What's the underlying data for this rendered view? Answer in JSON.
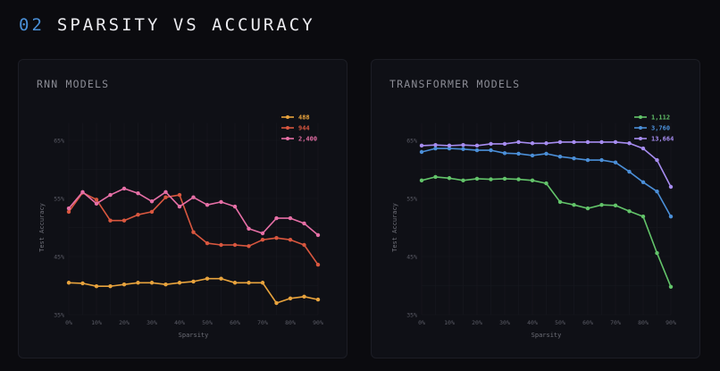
{
  "header": {
    "number": "02",
    "title": "SPARSITY VS ACCURACY"
  },
  "colors": {
    "background": "#0b0b0f",
    "panel": "#0f1016",
    "accent": "#4a8fd6",
    "grid": "#16171e"
  },
  "panels": [
    {
      "title": "RNN MODELS"
    },
    {
      "title": "TRANSFORMER MODELS"
    }
  ],
  "chart_data": [
    {
      "type": "line",
      "title": "RNN MODELS",
      "xlabel": "Sparsity",
      "ylabel": "Test Accuracy",
      "x": [
        0,
        5,
        10,
        15,
        20,
        25,
        30,
        35,
        40,
        45,
        50,
        55,
        60,
        65,
        70,
        75,
        80,
        85,
        90
      ],
      "x_ticks": [
        "0%",
        "10%",
        "20%",
        "30%",
        "40%",
        "50%",
        "60%",
        "70%",
        "80%",
        "90%"
      ],
      "y_ticks": [
        "35%",
        "45%",
        "55%",
        "65%"
      ],
      "ylim": [
        35,
        68
      ],
      "xlim": [
        0,
        90
      ],
      "grid": true,
      "legend_position": "upper right",
      "series": [
        {
          "name": "488",
          "color": "#e8a33d",
          "values": [
            40.5,
            40.4,
            39.9,
            39.9,
            40.2,
            40.5,
            40.5,
            40.2,
            40.5,
            40.7,
            41.2,
            41.2,
            40.5,
            40.5,
            40.5,
            37.0,
            37.8,
            38.1,
            37.6
          ]
        },
        {
          "name": "944",
          "color": "#d9573f",
          "values": [
            52.7,
            56.0,
            54.8,
            51.2,
            51.2,
            52.2,
            52.7,
            55.2,
            55.6,
            49.2,
            47.3,
            47.0,
            47.0,
            46.8,
            47.9,
            48.2,
            47.9,
            47.0,
            43.6
          ]
        },
        {
          "name": "2,400",
          "color": "#e66fa6",
          "values": [
            53.3,
            56.1,
            54.1,
            55.6,
            56.7,
            55.9,
            54.5,
            56.1,
            53.6,
            55.2,
            53.9,
            54.4,
            53.6,
            49.8,
            49.0,
            51.6,
            51.6,
            50.7,
            48.7
          ]
        }
      ]
    },
    {
      "type": "line",
      "title": "TRANSFORMER MODELS",
      "xlabel": "Sparsity",
      "ylabel": "Test Accuracy",
      "x": [
        0,
        5,
        10,
        15,
        20,
        25,
        30,
        35,
        40,
        45,
        50,
        55,
        60,
        65,
        70,
        75,
        80,
        85,
        90
      ],
      "x_ticks": [
        "0%",
        "10%",
        "20%",
        "30%",
        "40%",
        "50%",
        "60%",
        "70%",
        "80%",
        "90%"
      ],
      "y_ticks": [
        "35%",
        "45%",
        "55%",
        "65%"
      ],
      "ylim": [
        35,
        68
      ],
      "xlim": [
        0,
        90
      ],
      "grid": true,
      "legend_position": "upper right",
      "series": [
        {
          "name": "1,112",
          "color": "#63c46a",
          "values": [
            58.1,
            58.7,
            58.5,
            58.1,
            58.4,
            58.3,
            58.4,
            58.3,
            58.1,
            57.6,
            54.4,
            53.9,
            53.3,
            53.9,
            53.8,
            52.8,
            51.9,
            45.6,
            39.8
          ]
        },
        {
          "name": "3,760",
          "color": "#4b8fd8",
          "values": [
            63.0,
            63.6,
            63.6,
            63.5,
            63.3,
            63.3,
            62.8,
            62.7,
            62.4,
            62.7,
            62.2,
            61.9,
            61.6,
            61.6,
            61.2,
            59.6,
            57.8,
            56.2,
            51.9
          ]
        },
        {
          "name": "13,664",
          "color": "#a68cf0",
          "values": [
            64.1,
            64.2,
            64.1,
            64.2,
            64.1,
            64.4,
            64.4,
            64.7,
            64.5,
            64.5,
            64.7,
            64.7,
            64.7,
            64.7,
            64.7,
            64.5,
            63.6,
            61.6,
            57.0
          ]
        }
      ]
    }
  ]
}
